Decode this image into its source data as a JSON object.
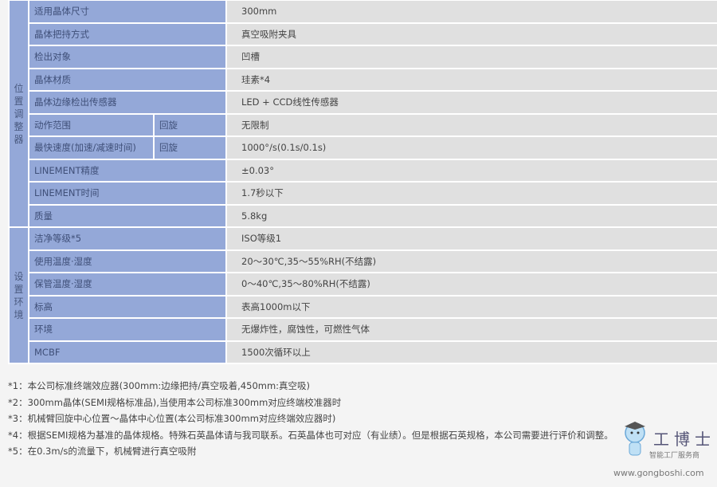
{
  "groups": [
    {
      "label": "位置调整器",
      "rows": [
        {
          "label": "适用晶体尺寸",
          "value": "300mm"
        },
        {
          "label": "晶体把持方式",
          "value": "真空吸附夹具"
        },
        {
          "label": "检出对象",
          "value": "凹槽"
        },
        {
          "label": "晶体材质",
          "value": "珪素*4"
        },
        {
          "label": "晶体边缘检出传感器",
          "value": "LED + CCD线性传感器"
        },
        {
          "label": "动作范围",
          "sub": "回旋",
          "value": "无限制"
        },
        {
          "label": "最快速度(加速/减速时间)",
          "sub": "回旋",
          "value": "1000°/s(0.1s/0.1s)"
        },
        {
          "label": "LINEMENT精度",
          "value": "±0.03°"
        },
        {
          "label": "LINEMENT时间",
          "value": "1.7秒以下"
        },
        {
          "label": "质量",
          "value": "5.8kg"
        }
      ]
    },
    {
      "label": "设置环境",
      "rows": [
        {
          "label": "洁净等级*5",
          "value": "ISO等级1"
        },
        {
          "label": "使用温度·湿度",
          "value": "20～30℃,35～55%RH(不结露)"
        },
        {
          "label": "保管温度·湿度",
          "value": "0～40℃,35～80%RH(不结露)"
        },
        {
          "label": "标高",
          "value": "表高1000m以下"
        },
        {
          "label": "环境",
          "value": "无爆炸性，腐蚀性，可燃性气体"
        },
        {
          "label": "MCBF",
          "value": "1500次循环以上"
        }
      ]
    }
  ],
  "notes": [
    "*1：本公司标准终端效应器(300mm:边缘把持/真空吸着,450mm:真空吸)",
    "*2：300mm晶体(SEMI规格标准品),当使用本公司标准300mm对应终端校准器时",
    "*3：机械臂回旋中心位置～晶体中心位置(本公司标准300mm对应终端效应器时)",
    "*4：根据SEMI规格为基准的晶体规格。特殊石英晶体请与我司联系。石英晶体也可对应（有业绩）。但是根据石英规格，本公司需要进行评价和调整。",
    "*5：在0.3m/s的流量下，机械臂进行真空吸附"
  ],
  "watermark": {
    "name": "工博士",
    "tagline": "智能工厂服务商",
    "url": "www.gongboshi.com"
  }
}
